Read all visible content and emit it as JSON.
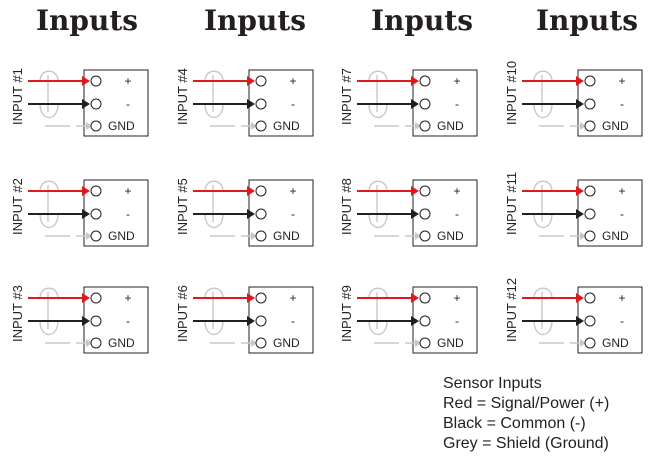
{
  "titles": [
    "Inputs",
    "Inputs",
    "Inputs",
    "Inputs"
  ],
  "inputs": [
    [
      "INPUT #1",
      "INPUT #2",
      "INPUT #3"
    ],
    [
      "INPUT #4",
      "INPUT #5",
      "INPUT #6"
    ],
    [
      "INPUT #7",
      "INPUT #8",
      "INPUT #9"
    ],
    [
      "INPUT #10",
      "INPUT #11",
      "INPUT #12"
    ]
  ],
  "terminal_labels": [
    "+",
    "-",
    "GND"
  ],
  "legend": {
    "title": "Sensor Inputs",
    "lines": [
      "Red = Signal/Power (+)",
      "Black = Common (-)",
      "Grey = Shield (Ground)"
    ]
  },
  "colors": {
    "signal": "#e0191e",
    "common": "#231f20",
    "shield": "#c8c8c8",
    "ink": "#231f20"
  }
}
